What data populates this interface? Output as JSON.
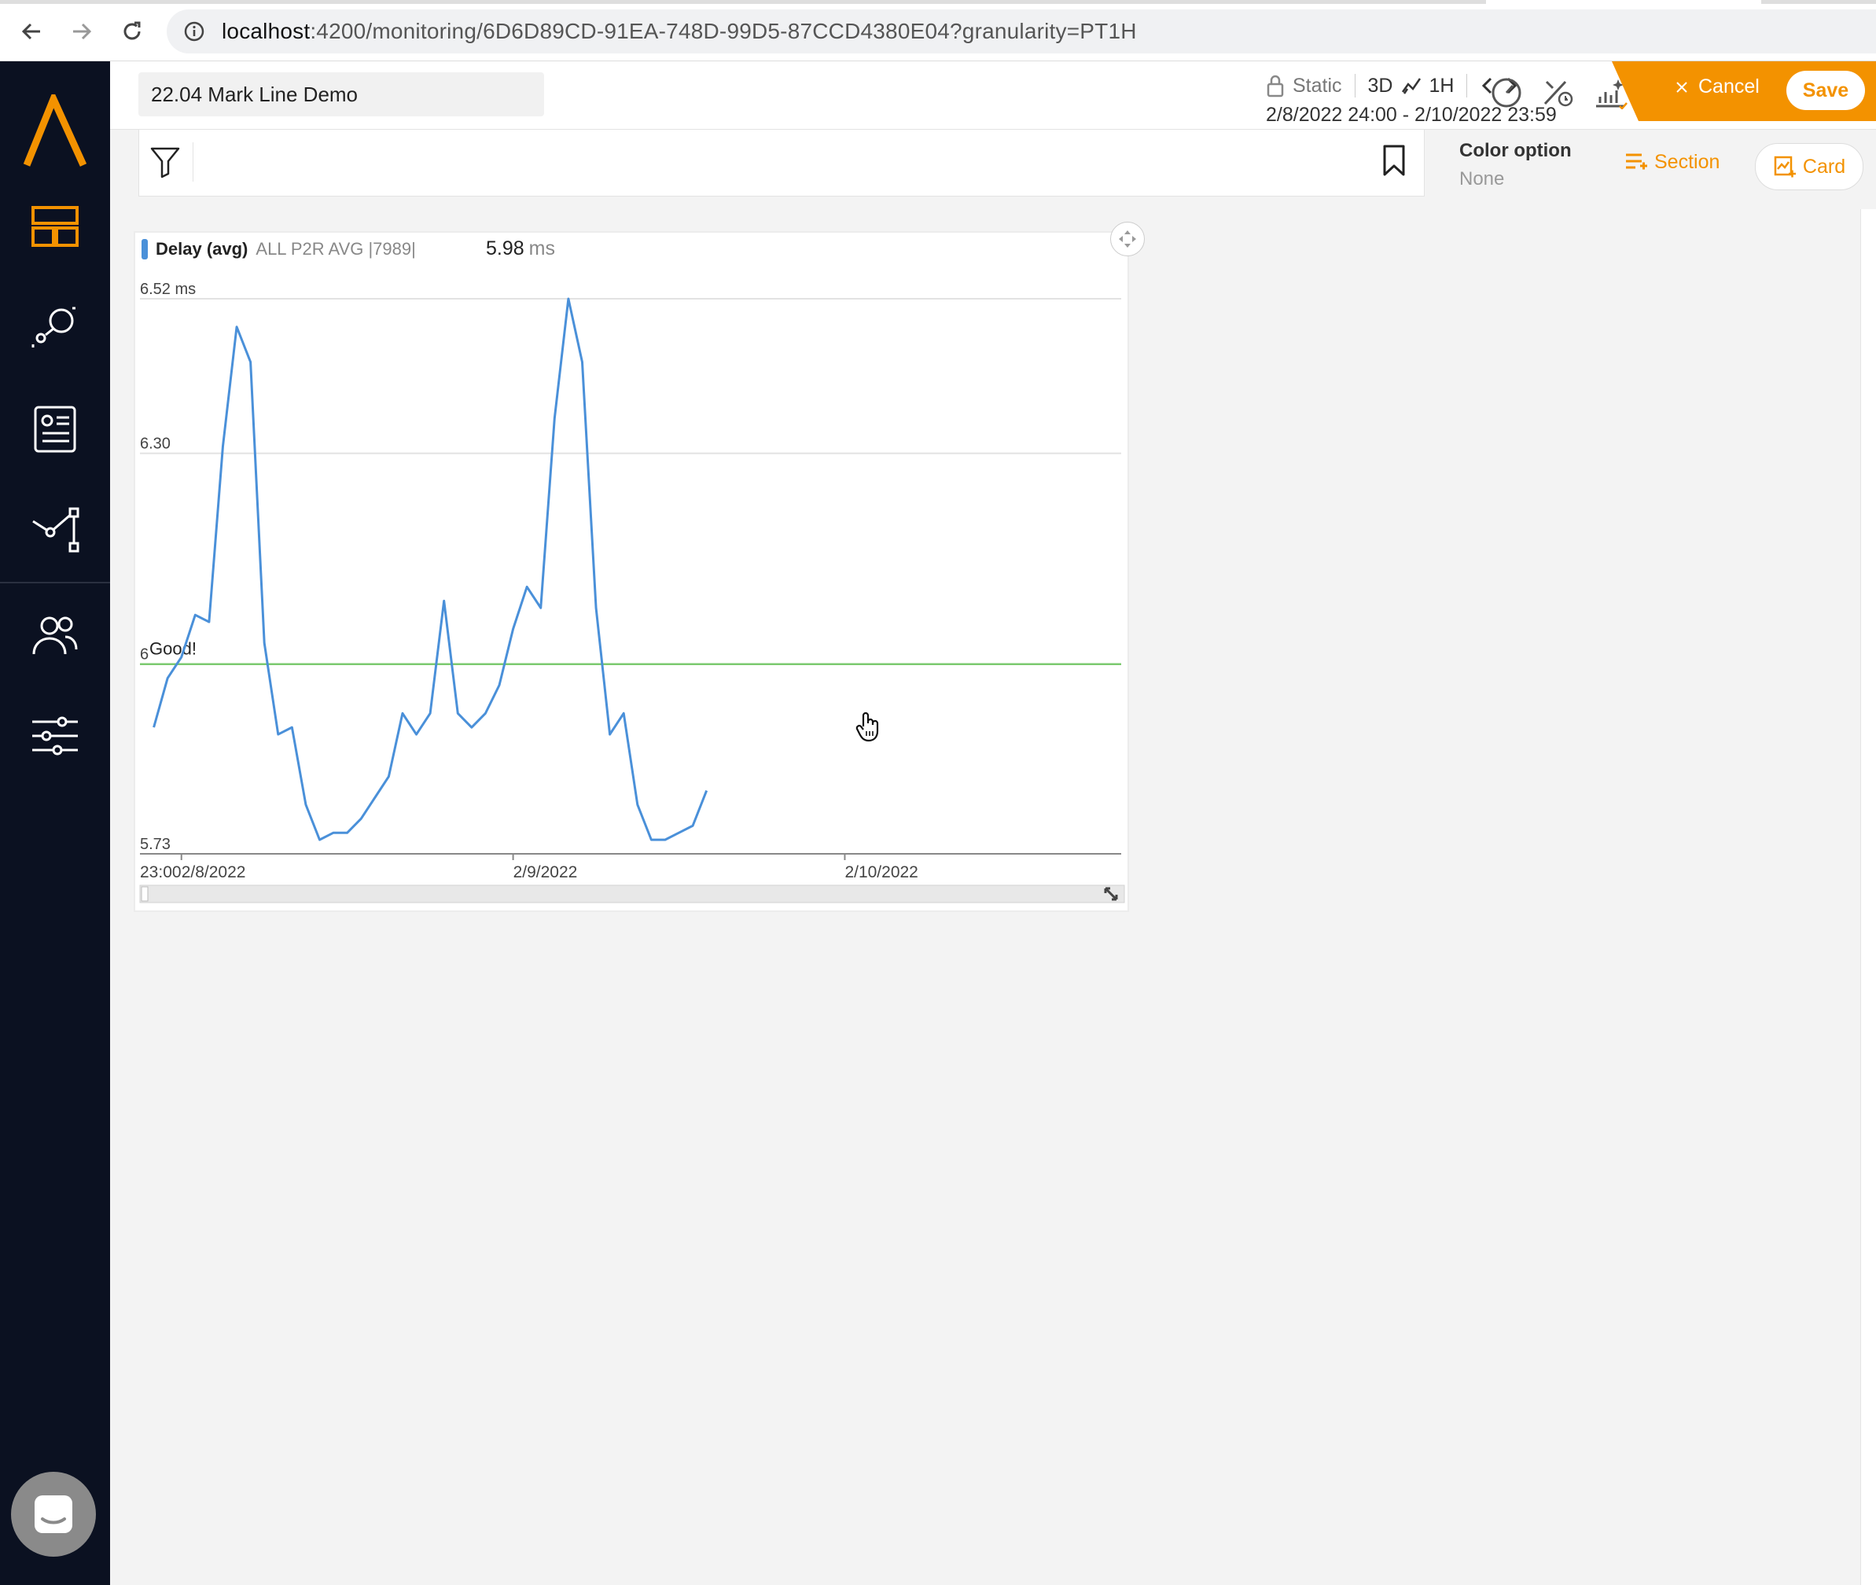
{
  "browser": {
    "url_host": "localhost",
    "url_path": ":4200/monitoring/6D6D89CD-91EA-748D-99D5-87CCD4380E04?granularity=PT1H"
  },
  "header": {
    "title": "22.04 Mark Line Demo",
    "lock_label": "Static",
    "period": "3D",
    "granularity": "1H",
    "range": "2/8/2022 24:00 - 2/10/2022 23:59",
    "cancel_label": "Cancel",
    "save_label": "Save"
  },
  "toolbar": {
    "color_option_label": "Color option",
    "color_option_value": "None",
    "section_label": "Section",
    "card_label": "Card"
  },
  "widget": {
    "legend_name": "Delay (avg)",
    "legend_sub": "ALL P2R AVG |7989|",
    "current_value": "5.98",
    "current_unit": "ms"
  },
  "colors": {
    "accent": "#f39200",
    "sidebar_bg": "#0b1121",
    "series": "#4a90d9",
    "markline": "#7bc96f"
  },
  "chart_data": {
    "type": "line",
    "series": [
      {
        "name": "Delay (avg)",
        "x_hours": [
          0,
          1,
          2,
          3,
          4,
          5,
          6,
          7,
          8,
          9,
          10,
          11,
          12,
          13,
          14,
          15,
          16,
          17,
          18,
          19,
          20,
          21,
          22,
          23,
          24,
          25,
          26,
          27,
          28,
          29,
          30,
          31,
          32,
          33,
          34,
          35,
          36,
          37,
          38,
          39,
          40
        ],
        "values": [
          5.91,
          5.98,
          6.01,
          6.07,
          6.06,
          6.31,
          6.48,
          6.43,
          6.03,
          5.9,
          5.91,
          5.8,
          5.75,
          5.76,
          5.76,
          5.78,
          5.81,
          5.84,
          5.93,
          5.9,
          5.93,
          6.09,
          5.93,
          5.91,
          5.93,
          5.97,
          6.05,
          6.11,
          6.08,
          6.35,
          6.52,
          6.43,
          6.08,
          5.9,
          5.93,
          5.8,
          5.75,
          5.75,
          5.76,
          5.77,
          5.82
        ]
      }
    ],
    "markline": {
      "label": "Good!",
      "value": 6.0
    },
    "ylim": [
      5.73,
      6.52
    ],
    "y_ticks": [
      "6.52 ms",
      "6.30",
      "6",
      "5.73"
    ],
    "x_ticks": [
      "23:00",
      "2/8/2022",
      "2/9/2022",
      "2/10/2022"
    ]
  }
}
